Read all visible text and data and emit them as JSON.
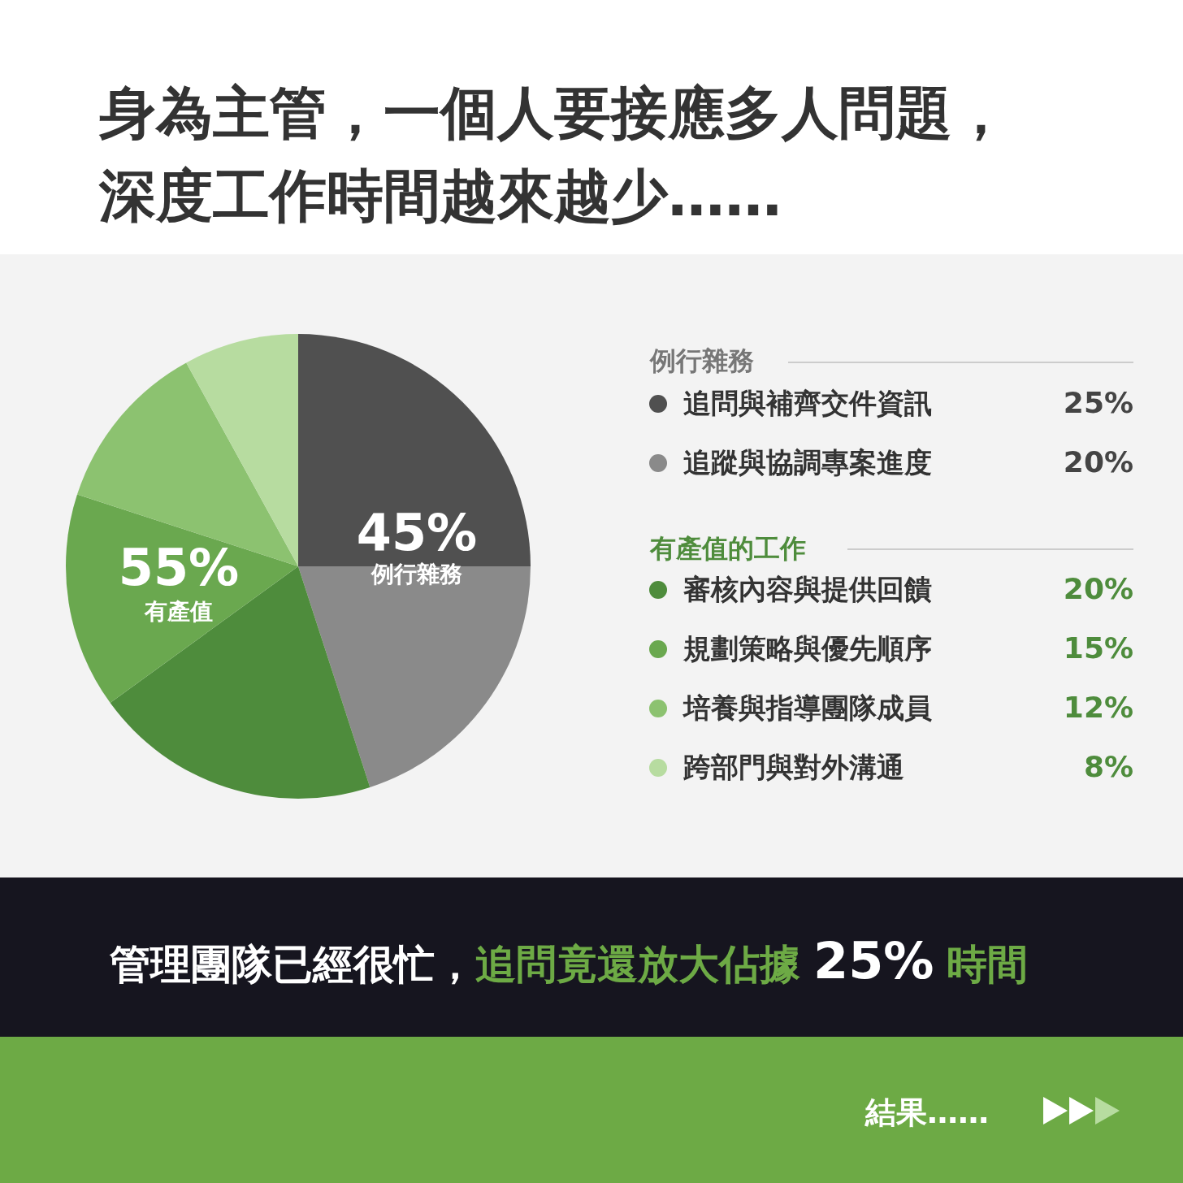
{
  "chart_data": {
    "type": "pie",
    "title": "身為主管，一個人要接應多人問題，深度工作時間越來越少……",
    "categories": [
      "追問與補齊交件資訊",
      "追蹤與協調專案進度",
      "審核內容與提供回饋",
      "規劃策略與優先順序",
      "培養與指導團隊成員",
      "跨部門與對外溝通"
    ],
    "values": [
      25,
      20,
      20,
      15,
      12,
      8
    ],
    "colors": [
      "#505050",
      "#8a8a8a",
      "#4e8c3c",
      "#6aa84f",
      "#8cc270",
      "#b7dca0"
    ],
    "value_labels": [
      "25%",
      "20%",
      "20%",
      "15%",
      "12%",
      "8%"
    ],
    "legend": "right",
    "annotations": [
      "45%",
      "例行雜務",
      "55%",
      "有產值",
      "例行雜務",
      "有產值的工作",
      "管理團隊已經很忙，",
      "追問竟還放大佔據",
      "25%",
      "時間",
      "結果……"
    ]
  }
}
